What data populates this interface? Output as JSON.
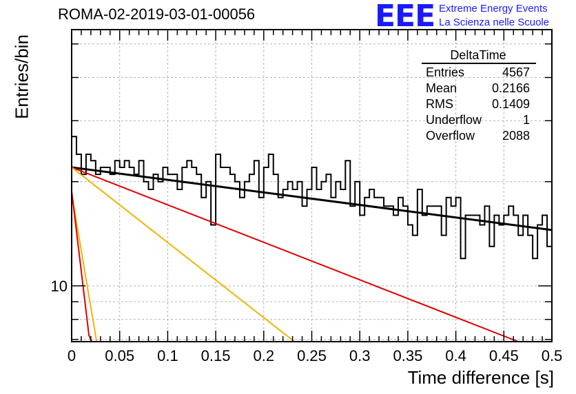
{
  "header": {
    "title": "ROMA-02-2019-03-01-00056",
    "logo_text": "EEE",
    "logo_line1": "Extreme Energy Events",
    "logo_line2": "La Scienza nelle Scuole"
  },
  "stats": {
    "title": "DeltaTime",
    "rows": [
      {
        "label": "Entries",
        "value": "4567"
      },
      {
        "label": "Mean",
        "value": "0.2166"
      },
      {
        "label": "RMS",
        "value": "0.1409"
      },
      {
        "label": "Underflow",
        "value": "1"
      },
      {
        "label": "Overflow",
        "value": "2088"
      }
    ]
  },
  "chart_data": {
    "type": "line",
    "title": "ROMA-02-2019-03-01-00056",
    "xlabel": "Time difference [s]",
    "ylabel": "Entries/bin",
    "xlim": [
      0,
      0.5
    ],
    "ylim": [
      6.9,
      55
    ],
    "yscale": "log",
    "grid": true,
    "x_ticks": [
      "0",
      "0.05",
      "0.1",
      "0.15",
      "0.2",
      "0.25",
      "0.3",
      "0.35",
      "0.4",
      "0.45",
      "0.5"
    ],
    "y_ticks": [
      "10"
    ],
    "histogram": {
      "bin_width": 0.005,
      "values": [
        27,
        24,
        21,
        24,
        23,
        21,
        22,
        22,
        21,
        23,
        22,
        23,
        22,
        21,
        23,
        20,
        19,
        21,
        20,
        22,
        21,
        21,
        19,
        22,
        23,
        22,
        21,
        18,
        20,
        15,
        24,
        22,
        22,
        21,
        20,
        18,
        20,
        21,
        23,
        18,
        22,
        24,
        21,
        18,
        19,
        20,
        19,
        20,
        17,
        19,
        22,
        19,
        20,
        21,
        18,
        20,
        19,
        23,
        17,
        20,
        16,
        18,
        19,
        18,
        18,
        17,
        17,
        16,
        18,
        17,
        15,
        14,
        19,
        16,
        17,
        17,
        17,
        14,
        18,
        17,
        18,
        12,
        16,
        16,
        16,
        15,
        17,
        13,
        16,
        15,
        16,
        17,
        16,
        14,
        16,
        14,
        12,
        15,
        16,
        13
      ]
    },
    "fits": [
      {
        "color": "#000000",
        "points": [
          [
            0.0,
            22
          ],
          [
            0.5,
            14.5
          ]
        ]
      },
      {
        "color": "#dd0000",
        "points": [
          [
            0.0,
            22
          ],
          [
            0.465,
            6.9
          ]
        ]
      },
      {
        "color": "#f0b400",
        "points": [
          [
            0.0,
            22
          ],
          [
            0.232,
            6.9
          ]
        ]
      },
      {
        "color": "#f0b400",
        "points": [
          [
            0.0,
            18.5
          ],
          [
            0.026,
            6.9
          ]
        ]
      },
      {
        "color": "#dd0000",
        "points": [
          [
            0.0,
            18.8
          ],
          [
            0.018,
            7.2
          ],
          [
            0.021,
            6.9
          ]
        ]
      }
    ]
  }
}
